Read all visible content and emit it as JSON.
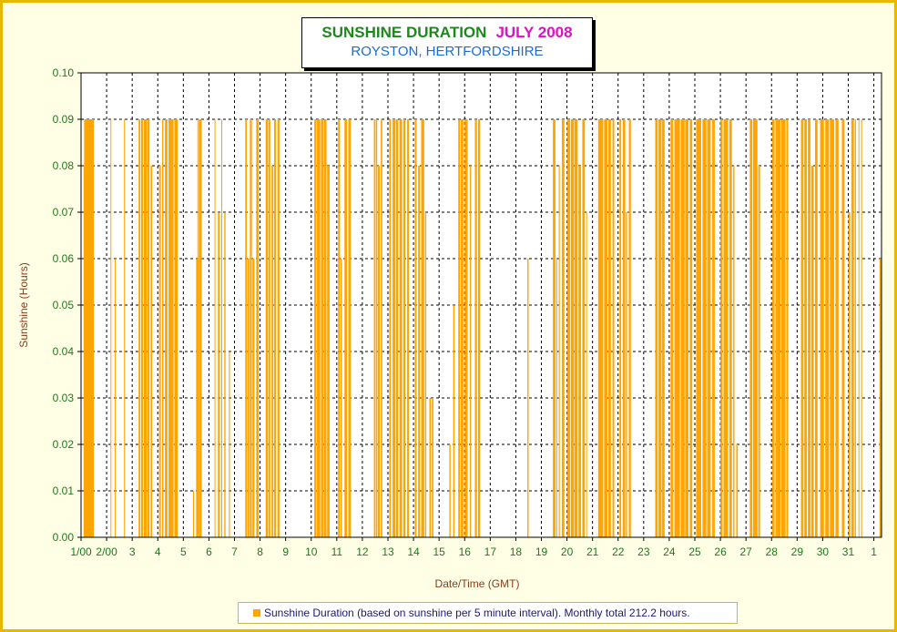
{
  "title": {
    "main": "SUNSHINE DURATION",
    "month": "JULY 2008",
    "location": "ROYSTON, HERTFORDSHIRE"
  },
  "colors": {
    "frame_border": "#e8b800",
    "background": "#ffffe6",
    "bar": "#ffa500",
    "tick_text": "#1b7a1b",
    "axis_label": "#8b3a1a",
    "title_main": "#1b8a1b",
    "title_month": "#e010c8",
    "subtitle": "#1a6ad8"
  },
  "chart_data": {
    "type": "bar",
    "title": "SUNSHINE DURATION JULY 2008",
    "subtitle": "ROYSTON, HERTFORDSHIRE",
    "xlabel": "Date/Time (GMT)",
    "ylabel": "Sunshine (Hours)",
    "ylim": [
      0,
      0.1
    ],
    "y_ticks": [
      "0.00",
      "0.01",
      "0.02",
      "0.03",
      "0.04",
      "0.05",
      "0.06",
      "0.07",
      "0.08",
      "0.09",
      "0.10"
    ],
    "x_range_days": [
      1,
      32.3
    ],
    "x_ticks": [
      "1/00",
      "2/00",
      "3",
      "4",
      "5",
      "6",
      "7",
      "8",
      "9",
      "10",
      "11",
      "12",
      "13",
      "14",
      "15",
      "16",
      "17",
      "18",
      "19",
      "20",
      "21",
      "22",
      "23",
      "24",
      "25",
      "26",
      "27",
      "28",
      "29",
      "30",
      "31",
      "1"
    ],
    "grid": true,
    "legend_position": "bottom",
    "series": [
      {
        "name": "Sunshine Duration (based on sunshine per 5 minute interval). Monthly total 212.2 hours.",
        "bar_interval_minutes": 5,
        "daily_segments": [
          {
            "day": 1,
            "segments": [
              [
                1.12,
                1.5,
                0.09
              ],
              [
                1.1,
                1.13,
                0.08
              ]
            ]
          },
          {
            "day": 2,
            "segments": [
              [
                2.15,
                2.18,
                0.09
              ],
              [
                2.32,
                2.35,
                0.06
              ],
              [
                2.68,
                2.72,
                0.09
              ]
            ]
          },
          {
            "day": 3,
            "segments": [
              [
                3.25,
                3.32,
                0.09
              ],
              [
                3.35,
                3.42,
                0.09
              ],
              [
                3.45,
                3.58,
                0.09
              ],
              [
                3.6,
                3.68,
                0.09
              ],
              [
                3.72,
                3.78,
                0.08
              ]
            ]
          },
          {
            "day": 4,
            "segments": [
              [
                4.05,
                4.12,
                0.08
              ],
              [
                4.17,
                4.22,
                0.09
              ],
              [
                4.28,
                4.38,
                0.09
              ],
              [
                4.42,
                4.62,
                0.09
              ],
              [
                4.65,
                4.78,
                0.09
              ]
            ]
          },
          {
            "day": 5,
            "segments": [
              [
                5.38,
                5.42,
                0.01
              ],
              [
                5.5,
                5.6,
                0.06
              ],
              [
                5.6,
                5.72,
                0.09
              ],
              [
                5.55,
                5.58,
                0.09
              ]
            ]
          },
          {
            "day": 6,
            "segments": [
              [
                6.22,
                6.25,
                0.09
              ],
              [
                6.35,
                6.42,
                0.07
              ],
              [
                6.48,
                6.52,
                0.09
              ],
              [
                6.6,
                6.65,
                0.07
              ],
              [
                6.78,
                6.82,
                0.04
              ]
            ]
          },
          {
            "day": 7,
            "segments": [
              [
                7.42,
                7.48,
                0.09
              ],
              [
                7.5,
                7.58,
                0.06
              ],
              [
                7.6,
                7.68,
                0.09
              ],
              [
                7.7,
                7.78,
                0.06
              ],
              [
                7.85,
                7.95,
                0.09
              ]
            ]
          },
          {
            "day": 8,
            "segments": [
              [
                8.22,
                8.3,
                0.09
              ],
              [
                8.32,
                8.4,
                0.09
              ],
              [
                8.45,
                8.52,
                0.08
              ],
              [
                8.55,
                8.62,
                0.09
              ],
              [
                8.68,
                8.76,
                0.09
              ]
            ]
          },
          {
            "day": 10,
            "segments": [
              [
                10.12,
                10.2,
                0.09
              ],
              [
                10.22,
                10.35,
                0.09
              ],
              [
                10.38,
                10.48,
                0.09
              ],
              [
                10.5,
                10.6,
                0.09
              ],
              [
                10.62,
                10.72,
                0.08
              ]
            ]
          },
          {
            "day": 11,
            "segments": [
              [
                11.05,
                11.12,
                0.09
              ],
              [
                11.15,
                11.2,
                0.06
              ],
              [
                11.3,
                11.4,
                0.09
              ],
              [
                11.45,
                11.55,
                0.09
              ]
            ]
          },
          {
            "day": 12,
            "segments": [
              [
                12.45,
                12.5,
                0.09
              ],
              [
                12.52,
                12.58,
                0.09
              ],
              [
                12.6,
                12.68,
                0.08
              ],
              [
                12.72,
                12.78,
                0.09
              ]
            ]
          },
          {
            "day": 13,
            "segments": [
              [
                13.05,
                13.12,
                0.09
              ],
              [
                13.18,
                13.3,
                0.09
              ],
              [
                13.32,
                13.4,
                0.09
              ],
              [
                13.45,
                13.55,
                0.09
              ],
              [
                13.6,
                13.68,
                0.09
              ],
              [
                13.75,
                13.82,
                0.09
              ]
            ]
          },
          {
            "day": 14,
            "segments": [
              [
                14.05,
                14.12,
                0.09
              ],
              [
                14.18,
                14.25,
                0.08
              ],
              [
                14.3,
                14.42,
                0.09
              ],
              [
                14.45,
                14.5,
                0.07
              ],
              [
                14.62,
                14.68,
                0.03
              ],
              [
                14.72,
                14.78,
                0.03
              ]
            ]
          },
          {
            "day": 15,
            "segments": [
              [
                15.4,
                15.45,
                0.02
              ],
              [
                15.55,
                15.6,
                0.05
              ]
            ]
          },
          {
            "day": 16,
            "segments": [
              [
                15.75,
                15.82,
                0.09
              ],
              [
                15.85,
                15.95,
                0.09
              ],
              [
                16.0,
                16.12,
                0.09
              ],
              [
                16.2,
                16.25,
                0.08
              ],
              [
                16.4,
                16.48,
                0.09
              ],
              [
                16.52,
                16.6,
                0.09
              ]
            ]
          },
          {
            "day": 18,
            "segments": [
              [
                18.45,
                18.5,
                0.06
              ]
            ]
          },
          {
            "day": 19,
            "segments": [
              [
                19.45,
                19.55,
                0.09
              ],
              [
                19.58,
                19.62,
                0.06
              ],
              [
                19.68,
                19.72,
                0.08
              ],
              [
                19.8,
                19.9,
                0.09
              ]
            ]
          },
          {
            "day": 20,
            "segments": [
              [
                20.0,
                20.12,
                0.09
              ],
              [
                20.15,
                20.28,
                0.09
              ],
              [
                20.3,
                20.42,
                0.09
              ],
              [
                20.45,
                20.55,
                0.08
              ],
              [
                20.6,
                20.7,
                0.09
              ],
              [
                20.75,
                20.78,
                0.07
              ]
            ]
          },
          {
            "day": 21,
            "segments": [
              [
                21.22,
                21.42,
                0.09
              ],
              [
                21.45,
                21.58,
                0.09
              ],
              [
                21.62,
                21.72,
                0.09
              ],
              [
                21.78,
                21.85,
                0.09
              ]
            ]
          },
          {
            "day": 22,
            "segments": [
              [
                22.05,
                22.12,
                0.09
              ],
              [
                22.18,
                22.28,
                0.09
              ],
              [
                22.3,
                22.35,
                0.07
              ],
              [
                22.42,
                22.5,
                0.09
              ]
            ]
          },
          {
            "day": 23,
            "segments": [
              [
                23.45,
                23.55,
                0.09
              ],
              [
                23.58,
                23.7,
                0.09
              ],
              [
                23.72,
                23.82,
                0.09
              ],
              [
                24.05,
                24.15,
                0.09
              ]
            ]
          },
          {
            "day": 24,
            "segments": [
              [
                24.2,
                24.42,
                0.09
              ],
              [
                24.45,
                24.6,
                0.09
              ],
              [
                24.62,
                24.75,
                0.09
              ],
              [
                24.8,
                24.9,
                0.09
              ]
            ]
          },
          {
            "day": 25,
            "segments": [
              [
                25.05,
                25.25,
                0.09
              ],
              [
                25.3,
                25.45,
                0.09
              ],
              [
                25.48,
                25.62,
                0.09
              ],
              [
                25.68,
                25.78,
                0.09
              ]
            ]
          },
          {
            "day": 26,
            "segments": [
              [
                26.0,
                26.08,
                0.09
              ],
              [
                26.12,
                26.3,
                0.09
              ],
              [
                26.35,
                26.45,
                0.09
              ],
              [
                26.5,
                26.55,
                0.08
              ],
              [
                26.62,
                26.68,
                0.02
              ]
            ]
          },
          {
            "day": 27,
            "segments": [
              [
                27.15,
                27.25,
                0.09
              ],
              [
                27.28,
                27.45,
                0.09
              ],
              [
                27.48,
                27.55,
                0.08
              ]
            ]
          },
          {
            "day": 28,
            "segments": [
              [
                28.02,
                28.12,
                0.09
              ],
              [
                28.15,
                28.35,
                0.09
              ],
              [
                28.38,
                28.55,
                0.09
              ],
              [
                28.58,
                28.65,
                0.09
              ]
            ]
          },
          {
            "day": 29,
            "segments": [
              [
                29.15,
                29.25,
                0.09
              ],
              [
                29.28,
                29.38,
                0.09
              ],
              [
                29.42,
                29.52,
                0.09
              ],
              [
                29.55,
                29.65,
                0.08
              ],
              [
                29.7,
                29.8,
                0.09
              ]
            ]
          },
          {
            "day": 30,
            "segments": [
              [
                29.9,
                30.05,
                0.09
              ],
              [
                30.1,
                30.25,
                0.09
              ],
              [
                30.28,
                30.45,
                0.09
              ],
              [
                30.5,
                30.62,
                0.09
              ]
            ]
          },
          {
            "day": 31,
            "segments": [
              [
                30.75,
                30.85,
                0.09
              ],
              [
                31.0,
                31.08,
                0.07
              ],
              [
                31.12,
                31.22,
                0.09
              ],
              [
                31.25,
                31.3,
                0.09
              ],
              [
                31.4,
                31.42,
                0.09
              ],
              [
                31.5,
                31.54,
                0.09
              ]
            ]
          },
          {
            "day": 32,
            "segments": [
              [
                32.22,
                32.28,
                0.06
              ],
              [
                32.28,
                32.3,
                0.09
              ]
            ]
          }
        ]
      }
    ]
  },
  "legend": {
    "label": "Sunshine Duration (based on sunshine per 5 minute interval). Monthly total 212.2 hours."
  }
}
